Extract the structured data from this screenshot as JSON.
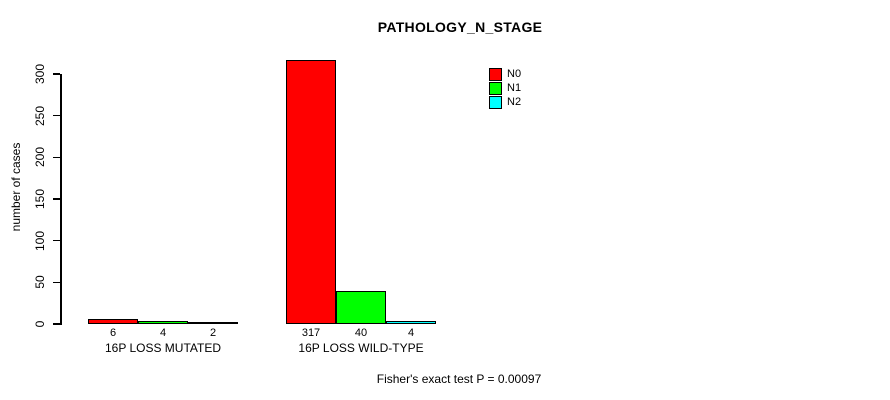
{
  "title": "PATHOLOGY_N_STAGE",
  "y_axis_label": "number of cases",
  "footer_text": "Fisher's exact test P = 0.00097",
  "legend": {
    "position": "top-right",
    "items": [
      {
        "label": "N0",
        "color": "#ff0000"
      },
      {
        "label": "N1",
        "color": "#00ff00"
      },
      {
        "label": "N2",
        "color": "#00ffff"
      }
    ]
  },
  "chart_data": {
    "type": "bar",
    "title": "PATHOLOGY_N_STAGE",
    "xlabel": "",
    "ylabel": "number of cases",
    "ylim": [
      0,
      300
    ],
    "yticks": [
      0,
      50,
      100,
      150,
      200,
      250,
      300
    ],
    "grid": false,
    "legend_position": "top-right",
    "categories": [
      "16P LOSS MUTATED",
      "16P LOSS WILD-TYPE"
    ],
    "series": [
      {
        "name": "N0",
        "color": "#ff0000",
        "values": [
          6,
          317
        ]
      },
      {
        "name": "N1",
        "color": "#00ff00",
        "values": [
          4,
          40
        ]
      },
      {
        "name": "N2",
        "color": "#00ffff",
        "values": [
          2,
          4
        ]
      }
    ],
    "bar_value_labels": [
      [
        6,
        4,
        2
      ],
      [
        317,
        40,
        4
      ]
    ],
    "annotation": "Fisher's exact test P = 0.00097"
  }
}
